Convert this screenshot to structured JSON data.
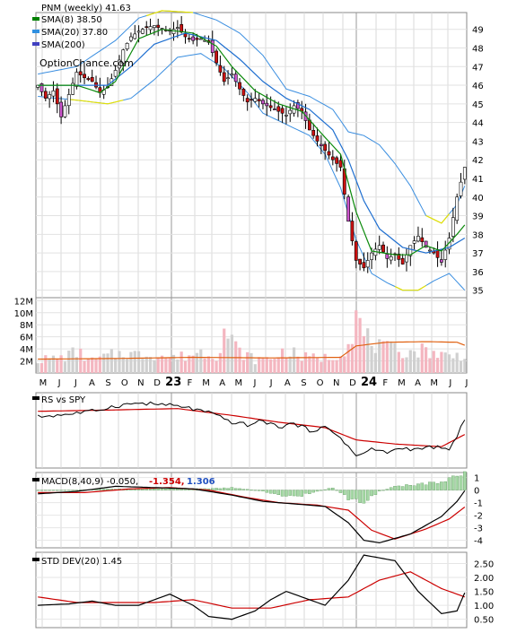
{
  "chart_data": [
    {
      "type": "candlestick",
      "name": "price",
      "legend": [
        {
          "label": "PNM (weekly) 41.63",
          "color": "#000000"
        },
        {
          "label": "SMA(8) 38.50",
          "color": "#008000"
        },
        {
          "label": "SMA(20) 37.80",
          "color": "#3090e0"
        },
        {
          "label": "SMA(200)",
          "color": "#4040c0"
        }
      ],
      "watermark": "OptionChance.com",
      "ylim": [
        34.6,
        49.9
      ],
      "yticks": [
        35,
        36,
        37,
        38,
        39,
        40,
        41,
        42,
        43,
        44,
        45,
        46,
        47,
        48,
        49
      ],
      "xticks": [
        "M",
        "J",
        "J",
        "A",
        "S",
        "O",
        "N",
        "D",
        "23",
        "F",
        "M",
        "A",
        "M",
        "J",
        "J",
        "A",
        "S",
        "O",
        "N",
        "D",
        "24",
        "F",
        "M",
        "A",
        "M",
        "J",
        "J"
      ],
      "close_anchors": [
        [
          0,
          46.0
        ],
        [
          2,
          45.3
        ],
        [
          4,
          45.7
        ],
        [
          6,
          44.3
        ],
        [
          8,
          45.5
        ],
        [
          10,
          46.7
        ],
        [
          12,
          46.4
        ],
        [
          14,
          46.2
        ],
        [
          16,
          45.6
        ],
        [
          18,
          45.9
        ],
        [
          20,
          46.8
        ],
        [
          22,
          47.9
        ],
        [
          24,
          48.6
        ],
        [
          26,
          48.9
        ],
        [
          28,
          49.1
        ],
        [
          30,
          49.2
        ],
        [
          32,
          49.0
        ],
        [
          34,
          48.9
        ],
        [
          36,
          49.1
        ],
        [
          38,
          48.6
        ],
        [
          40,
          48.4
        ],
        [
          42,
          48.5
        ],
        [
          44,
          48.3
        ],
        [
          46,
          47.2
        ],
        [
          48,
          46.2
        ],
        [
          50,
          46.6
        ],
        [
          52,
          45.8
        ],
        [
          54,
          45.1
        ],
        [
          56,
          45.3
        ],
        [
          58,
          45.0
        ],
        [
          60,
          44.8
        ],
        [
          62,
          44.6
        ],
        [
          64,
          44.4
        ],
        [
          66,
          44.9
        ],
        [
          68,
          44.6
        ],
        [
          70,
          43.6
        ],
        [
          72,
          43.0
        ],
        [
          74,
          42.5
        ],
        [
          76,
          42.0
        ],
        [
          78,
          41.6
        ],
        [
          80,
          38.7
        ],
        [
          82,
          36.6
        ],
        [
          84,
          36.2
        ],
        [
          86,
          37.0
        ],
        [
          88,
          37.4
        ],
        [
          90,
          36.7
        ],
        [
          92,
          36.9
        ],
        [
          94,
          36.4
        ],
        [
          96,
          37.4
        ],
        [
          98,
          37.9
        ],
        [
          100,
          37.3
        ],
        [
          102,
          37.0
        ],
        [
          104,
          36.5
        ],
        [
          106,
          37.8
        ],
        [
          108,
          40.0
        ],
        [
          110,
          41.6
        ]
      ],
      "sma8_anchors": [
        [
          0,
          46.0
        ],
        [
          10,
          46.0
        ],
        [
          16,
          45.6
        ],
        [
          20,
          46.2
        ],
        [
          26,
          48.5
        ],
        [
          32,
          49.0
        ],
        [
          40,
          48.8
        ],
        [
          46,
          48.1
        ],
        [
          50,
          47.0
        ],
        [
          56,
          45.7
        ],
        [
          62,
          45.0
        ],
        [
          68,
          44.6
        ],
        [
          74,
          43.2
        ],
        [
          78,
          42.3
        ],
        [
          82,
          39.2
        ],
        [
          86,
          37.1
        ],
        [
          92,
          36.9
        ],
        [
          96,
          36.9
        ],
        [
          100,
          37.4
        ],
        [
          104,
          37.1
        ],
        [
          108,
          38.0
        ],
        [
          110,
          38.5
        ]
      ],
      "sma20_anchors": [
        [
          0,
          46.0
        ],
        [
          12,
          46.0
        ],
        [
          18,
          46.0
        ],
        [
          24,
          47.0
        ],
        [
          30,
          48.2
        ],
        [
          38,
          48.8
        ],
        [
          46,
          48.4
        ],
        [
          52,
          47.4
        ],
        [
          58,
          46.2
        ],
        [
          64,
          45.3
        ],
        [
          70,
          44.7
        ],
        [
          76,
          43.6
        ],
        [
          80,
          42.0
        ],
        [
          84,
          39.8
        ],
        [
          88,
          38.3
        ],
        [
          94,
          37.3
        ],
        [
          100,
          37.0
        ],
        [
          106,
          37.3
        ],
        [
          110,
          37.8
        ]
      ],
      "bb_upper_anchors": [
        [
          0,
          46.6
        ],
        [
          10,
          47.0
        ],
        [
          20,
          48.4
        ],
        [
          26,
          49.6
        ],
        [
          32,
          50.0
        ],
        [
          40,
          49.9
        ],
        [
          46,
          49.5
        ],
        [
          52,
          48.8
        ],
        [
          58,
          47.6
        ],
        [
          64,
          45.8
        ],
        [
          70,
          45.4
        ],
        [
          76,
          44.7
        ],
        [
          80,
          43.5
        ],
        [
          84,
          43.3
        ],
        [
          88,
          42.8
        ],
        [
          92,
          41.8
        ],
        [
          96,
          40.6
        ],
        [
          100,
          39.0
        ],
        [
          104,
          38.6
        ],
        [
          108,
          39.6
        ],
        [
          110,
          40.6
        ]
      ],
      "bb_lower_anchors": [
        [
          0,
          45.4
        ],
        [
          10,
          45.2
        ],
        [
          18,
          45.0
        ],
        [
          24,
          45.3
        ],
        [
          30,
          46.3
        ],
        [
          36,
          47.5
        ],
        [
          42,
          47.7
        ],
        [
          48,
          46.9
        ],
        [
          54,
          45.6
        ],
        [
          58,
          44.5
        ],
        [
          64,
          43.9
        ],
        [
          70,
          43.3
        ],
        [
          74,
          42.3
        ],
        [
          78,
          40.5
        ],
        [
          82,
          37.7
        ],
        [
          86,
          35.9
        ],
        [
          90,
          35.4
        ],
        [
          94,
          35.0
        ],
        [
          98,
          35.0
        ],
        [
          102,
          35.5
        ],
        [
          106,
          35.9
        ],
        [
          110,
          35.0
        ]
      ]
    },
    {
      "type": "bar",
      "name": "volume",
      "yticks": [
        "2M",
        "4M",
        "6M",
        "8M",
        "10M",
        "12M"
      ],
      "yvalues": [
        2,
        4,
        6,
        8,
        10,
        12
      ],
      "ylim": [
        0,
        12.5
      ],
      "volume_anchors": [
        [
          0,
          2.2
        ],
        [
          6,
          2.5
        ],
        [
          10,
          3.5
        ],
        [
          14,
          2.0
        ],
        [
          18,
          2.8
        ],
        [
          22,
          3.4
        ],
        [
          26,
          3.0
        ],
        [
          30,
          3.2
        ],
        [
          34,
          2.5
        ],
        [
          38,
          2.8
        ],
        [
          42,
          3.5
        ],
        [
          46,
          3.0
        ],
        [
          48,
          7.0
        ],
        [
          52,
          3.5
        ],
        [
          56,
          2.2
        ],
        [
          60,
          2.4
        ],
        [
          64,
          3.8
        ],
        [
          68,
          2.6
        ],
        [
          72,
          2.5
        ],
        [
          76,
          2.6
        ],
        [
          80,
          4.8
        ],
        [
          82,
          9.5
        ],
        [
          84,
          6.2
        ],
        [
          88,
          4.2
        ],
        [
          92,
          3.8
        ],
        [
          96,
          3.5
        ],
        [
          100,
          3.9
        ],
        [
          104,
          3.0
        ],
        [
          108,
          2.8
        ],
        [
          110,
          3.2
        ]
      ],
      "avg_anchors": [
        [
          0,
          2.3
        ],
        [
          20,
          2.4
        ],
        [
          40,
          2.6
        ],
        [
          60,
          2.5
        ],
        [
          78,
          2.6
        ],
        [
          82,
          4.5
        ],
        [
          90,
          5.1
        ],
        [
          100,
          5.2
        ],
        [
          108,
          5.1
        ],
        [
          110,
          4.6
        ]
      ]
    },
    {
      "type": "line",
      "name": "relative-strength",
      "legend": [
        {
          "label": "RS vs SPY",
          "color": "#000000"
        }
      ],
      "ylim": [
        0,
        1
      ],
      "rs_anchors": [
        [
          0,
          0.7
        ],
        [
          8,
          0.74
        ],
        [
          14,
          0.78
        ],
        [
          20,
          0.86
        ],
        [
          26,
          0.9
        ],
        [
          32,
          0.88
        ],
        [
          38,
          0.84
        ],
        [
          44,
          0.76
        ],
        [
          50,
          0.62
        ],
        [
          54,
          0.58
        ],
        [
          58,
          0.64
        ],
        [
          62,
          0.55
        ],
        [
          66,
          0.6
        ],
        [
          70,
          0.5
        ],
        [
          74,
          0.54
        ],
        [
          78,
          0.4
        ],
        [
          82,
          0.12
        ],
        [
          86,
          0.22
        ],
        [
          90,
          0.18
        ],
        [
          94,
          0.24
        ],
        [
          98,
          0.22
        ],
        [
          102,
          0.26
        ],
        [
          106,
          0.2
        ],
        [
          110,
          0.66
        ]
      ],
      "rs_ma_anchors": [
        [
          0,
          0.78
        ],
        [
          20,
          0.8
        ],
        [
          36,
          0.82
        ],
        [
          50,
          0.72
        ],
        [
          62,
          0.62
        ],
        [
          74,
          0.54
        ],
        [
          82,
          0.36
        ],
        [
          92,
          0.3
        ],
        [
          104,
          0.26
        ],
        [
          110,
          0.44
        ]
      ]
    },
    {
      "type": "bar",
      "name": "macd",
      "legend": [
        {
          "label": "MACD(8,40,9) -0.050,",
          "color": "#000000"
        },
        {
          "label": "-1.354,",
          "color": "#cc0000"
        },
        {
          "label": "1.306",
          "color": "#2050c0"
        }
      ],
      "yticks": [
        1,
        0,
        -1,
        -2,
        -3,
        -4
      ],
      "ylim": [
        -4.6,
        1.4
      ],
      "macd_anchors": [
        [
          0,
          -0.3
        ],
        [
          10,
          -0.1
        ],
        [
          20,
          0.3
        ],
        [
          30,
          0.2
        ],
        [
          40,
          0.1
        ],
        [
          50,
          -0.4
        ],
        [
          58,
          -0.9
        ],
        [
          66,
          -1.1
        ],
        [
          74,
          -1.3
        ],
        [
          80,
          -2.6
        ],
        [
          84,
          -4.0
        ],
        [
          88,
          -4.2
        ],
        [
          96,
          -3.5
        ],
        [
          104,
          -2.1
        ],
        [
          108,
          -0.9
        ],
        [
          110,
          -0.05
        ]
      ],
      "signal_anchors": [
        [
          0,
          -0.2
        ],
        [
          12,
          -0.2
        ],
        [
          24,
          0.1
        ],
        [
          34,
          0.2
        ],
        [
          44,
          0.0
        ],
        [
          54,
          -0.6
        ],
        [
          62,
          -1.0
        ],
        [
          72,
          -1.2
        ],
        [
          80,
          -1.6
        ],
        [
          86,
          -3.2
        ],
        [
          92,
          -3.9
        ],
        [
          100,
          -3.1
        ],
        [
          106,
          -2.3
        ],
        [
          110,
          -1.35
        ]
      ],
      "hist_anchors": [
        [
          0,
          0.0
        ],
        [
          10,
          0.0
        ],
        [
          20,
          0.1
        ],
        [
          30,
          0.1
        ],
        [
          44,
          0.1
        ],
        [
          50,
          0.2
        ],
        [
          58,
          -0.1
        ],
        [
          66,
          -0.6
        ],
        [
          76,
          0.2
        ],
        [
          80,
          -0.7
        ],
        [
          84,
          -0.9
        ],
        [
          88,
          -0.1
        ],
        [
          92,
          0.3
        ],
        [
          98,
          0.5
        ],
        [
          104,
          0.6
        ],
        [
          110,
          1.3
        ]
      ]
    },
    {
      "type": "line",
      "name": "std-dev",
      "legend": [
        {
          "label": "STD DEV(20) 1.45",
          "color": "#000000"
        }
      ],
      "yticks": [
        "2.50",
        "2.00",
        "1.50",
        "1.00",
        "0.50"
      ],
      "yvalues": [
        2.5,
        2.0,
        1.5,
        1.0,
        0.5
      ],
      "ylim": [
        0.2,
        2.9
      ],
      "std_anchors": [
        [
          0,
          1.0
        ],
        [
          8,
          1.05
        ],
        [
          14,
          1.15
        ],
        [
          20,
          1.0
        ],
        [
          26,
          1.0
        ],
        [
          34,
          1.4
        ],
        [
          40,
          1.0
        ],
        [
          44,
          0.6
        ],
        [
          50,
          0.5
        ],
        [
          56,
          0.8
        ],
        [
          60,
          1.2
        ],
        [
          64,
          1.5
        ],
        [
          68,
          1.3
        ],
        [
          74,
          1.0
        ],
        [
          80,
          1.9
        ],
        [
          84,
          2.8
        ],
        [
          92,
          2.6
        ],
        [
          98,
          1.5
        ],
        [
          104,
          0.7
        ],
        [
          108,
          0.8
        ],
        [
          110,
          1.45
        ]
      ],
      "std_ma_anchors": [
        [
          0,
          1.3
        ],
        [
          10,
          1.1
        ],
        [
          20,
          1.1
        ],
        [
          30,
          1.1
        ],
        [
          40,
          1.2
        ],
        [
          50,
          0.9
        ],
        [
          60,
          0.9
        ],
        [
          70,
          1.2
        ],
        [
          80,
          1.3
        ],
        [
          88,
          1.9
        ],
        [
          96,
          2.2
        ],
        [
          104,
          1.6
        ],
        [
          110,
          1.3
        ]
      ]
    }
  ]
}
